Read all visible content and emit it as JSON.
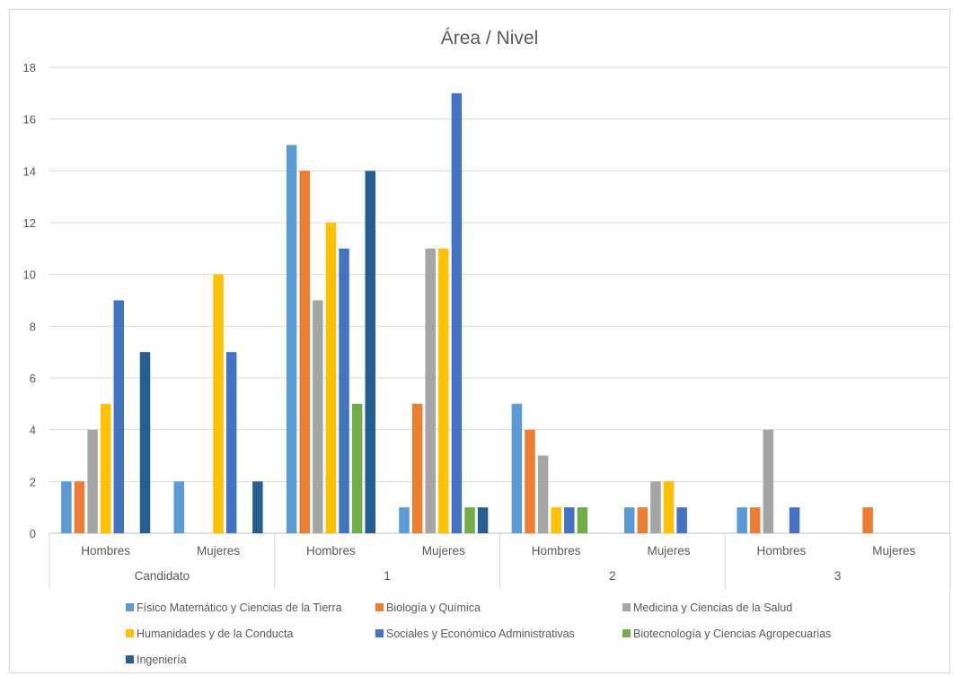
{
  "chart_data": {
    "type": "bar",
    "title": "Área / Nivel",
    "ylim": [
      0,
      18
    ],
    "yticks": [
      0,
      2,
      4,
      6,
      8,
      10,
      12,
      14,
      16,
      18
    ],
    "grid": true,
    "legend_position": "bottom",
    "groups": [
      {
        "label": "Candidato",
        "categories": [
          "Hombres",
          "Mujeres"
        ]
      },
      {
        "label": "1",
        "categories": [
          "Hombres",
          "Mujeres"
        ]
      },
      {
        "label": "2",
        "categories": [
          "Hombres",
          "Mujeres"
        ]
      },
      {
        "label": "3",
        "categories": [
          "Hombres",
          "Mujeres"
        ]
      }
    ],
    "categories": [
      "Candidato / Hombres",
      "Candidato / Mujeres",
      "1 / Hombres",
      "1 / Mujeres",
      "2 / Hombres",
      "2 / Mujeres",
      "3 / Hombres",
      "3 / Mujeres"
    ],
    "series": [
      {
        "name": "Físico Matemático y Ciencias de la Tierra",
        "color": "#5B9BD5",
        "values": [
          2,
          2,
          15,
          1,
          5,
          1,
          1,
          0
        ]
      },
      {
        "name": "Biología y Química",
        "color": "#ED7D31",
        "values": [
          2,
          0,
          14,
          5,
          4,
          1,
          1,
          1
        ]
      },
      {
        "name": "Medicina y Ciencias de la Salud",
        "color": "#A5A5A5",
        "values": [
          4,
          0,
          9,
          11,
          3,
          2,
          4,
          0
        ]
      },
      {
        "name": "Humanidades y de la Conducta",
        "color": "#FFC000",
        "values": [
          5,
          10,
          12,
          11,
          1,
          2,
          0,
          0
        ]
      },
      {
        "name": "Sociales y Económico Administrativas",
        "color": "#4472C4",
        "values": [
          9,
          7,
          11,
          17,
          1,
          1,
          1,
          0
        ]
      },
      {
        "name": "Biotecnología y Ciencias Agropecuarias",
        "color": "#70AD47",
        "values": [
          0,
          0,
          5,
          1,
          1,
          0,
          0,
          0
        ]
      },
      {
        "name": "Ingeniería",
        "color": "#255E91",
        "values": [
          7,
          2,
          14,
          1,
          0,
          0,
          0,
          0
        ]
      }
    ]
  }
}
